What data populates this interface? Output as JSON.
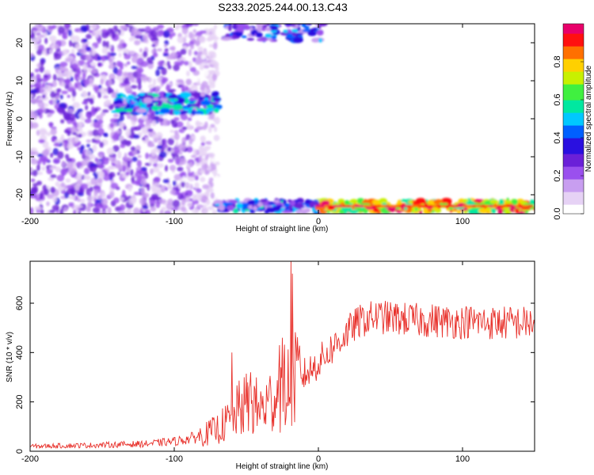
{
  "title": "S233.2025.244.00.13.C43",
  "colors": {
    "line": "#e8312b",
    "frame": "#000000",
    "spectrogram_palette": [
      "#ffffff",
      "#e6d2f5",
      "#c89ef0",
      "#9a50ee",
      "#6a20d8",
      "#2a10e0",
      "#0060ff",
      "#00c8ff",
      "#00e8a0",
      "#40f040",
      "#c8f000",
      "#ffd000",
      "#ff7000",
      "#ff1010",
      "#e8006a"
    ]
  },
  "chart_data": [
    {
      "type": "heatmap",
      "xlabel": "Height of straight line (km)",
      "ylabel": "Frequency (Hz)",
      "xlim": [
        -200,
        150
      ],
      "ylim": [
        -25,
        25
      ],
      "xticks": [
        -200,
        -100,
        0,
        100
      ],
      "yticks": [
        -20,
        -10,
        0,
        10,
        20
      ],
      "colorbar": {
        "label": "Normalized spectral amplitude",
        "range": [
          0.0,
          1.0
        ],
        "ticks": [
          0.0,
          0.2,
          0.4,
          0.6,
          0.8
        ]
      },
      "features": [
        {
          "region": "diffuse noise",
          "x_range": [
            -200,
            -70
          ],
          "y_range": [
            -25,
            25
          ],
          "amplitude": 0.15
        },
        {
          "region": "band near +4 Hz",
          "x_range": [
            -140,
            -70
          ],
          "y_center": 4,
          "amplitude": 0.45
        },
        {
          "region": "band near -23 Hz",
          "x_range": [
            -70,
            150
          ],
          "y_center": -23,
          "amplitude": 0.9
        },
        {
          "region": "band near +23 Hz",
          "x_range": [
            -65,
            5
          ],
          "y_center": 23,
          "amplitude": 0.4
        }
      ]
    },
    {
      "type": "line",
      "xlabel": "Height of straight line (km)",
      "ylabel": "SNR (10 * v/v)",
      "xlim": [
        -200,
        150
      ],
      "ylim": [
        0,
        770
      ],
      "xticks": [
        -200,
        -100,
        0,
        100
      ],
      "yticks": [
        0,
        200,
        400,
        600
      ],
      "series": [
        {
          "x": [
            -200,
            -180,
            -160,
            -140,
            -120,
            -100,
            -90,
            -80,
            -70,
            -60,
            -55,
            -50,
            -45,
            -40,
            -35,
            -30,
            -25,
            -20,
            -15,
            -10,
            -5,
            0,
            5,
            10,
            15,
            20,
            25,
            30,
            40,
            50,
            60,
            70,
            80,
            90,
            100,
            110,
            120,
            130,
            140,
            150
          ],
          "values": [
            20,
            22,
            24,
            27,
            30,
            40,
            50,
            65,
            90,
            130,
            170,
            190,
            185,
            170,
            190,
            230,
            250,
            270,
            290,
            310,
            330,
            360,
            390,
            420,
            450,
            480,
            510,
            530,
            545,
            540,
            535,
            530,
            530,
            525,
            525,
            525,
            520,
            520,
            520,
            520
          ],
          "spikes": [
            {
              "x": -60,
              "y": 400
            },
            {
              "x": -47,
              "y": 320
            },
            {
              "x": -27,
              "y": 430
            },
            {
              "x": -25,
              "y": 460
            },
            {
              "x": -19,
              "y": 770
            },
            {
              "x": -18,
              "y": 720
            }
          ]
        }
      ]
    }
  ]
}
